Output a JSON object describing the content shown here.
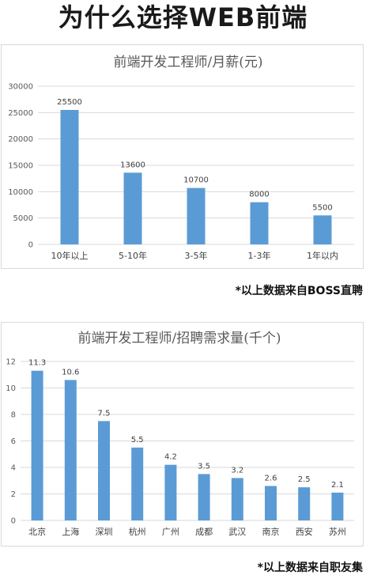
{
  "page": {
    "title": "为什么选择WEB前端"
  },
  "colors": {
    "bar": "#5b9bd5",
    "grid": "#d9d9d9",
    "axis_text": "#595959"
  },
  "notes": {
    "salary_source": "*以上数据来自BOSS直聘",
    "jobs_source": "*以上数据来自职友集"
  },
  "chart_data": [
    {
      "type": "bar",
      "title": "前端开发工程师/月薪(元)",
      "categories": [
        "10年以上",
        "5-10年",
        "3-5年",
        "1-3年",
        "1年以内"
      ],
      "values": [
        25500,
        13600,
        10700,
        8000,
        5500
      ],
      "data_labels": [
        "25500",
        "13600",
        "10700",
        "8000",
        "5500"
      ],
      "ylim": [
        0,
        30000
      ],
      "yticks": [
        "0",
        "5000",
        "10000",
        "15000",
        "20000",
        "25000",
        "30000"
      ],
      "grid": true,
      "legend": "none"
    },
    {
      "type": "bar",
      "title": "前端开发工程师/招聘需求量(千个)",
      "categories": [
        "北京",
        "上海",
        "深圳",
        "杭州",
        "广州",
        "成都",
        "武汉",
        "南京",
        "西安",
        "苏州"
      ],
      "values": [
        11.3,
        10.6,
        7.5,
        5.5,
        4.2,
        3.5,
        3.2,
        2.6,
        2.5,
        2.1
      ],
      "data_labels": [
        "11.3",
        "10.6",
        "7.5",
        "5.5",
        "4.2",
        "3.5",
        "3.2",
        "2.6",
        "2.5",
        "2.1"
      ],
      "ylim": [
        0,
        12
      ],
      "yticks": [
        "0",
        "2",
        "4",
        "6",
        "8",
        "10",
        "12"
      ],
      "grid": true,
      "legend": "none"
    }
  ]
}
